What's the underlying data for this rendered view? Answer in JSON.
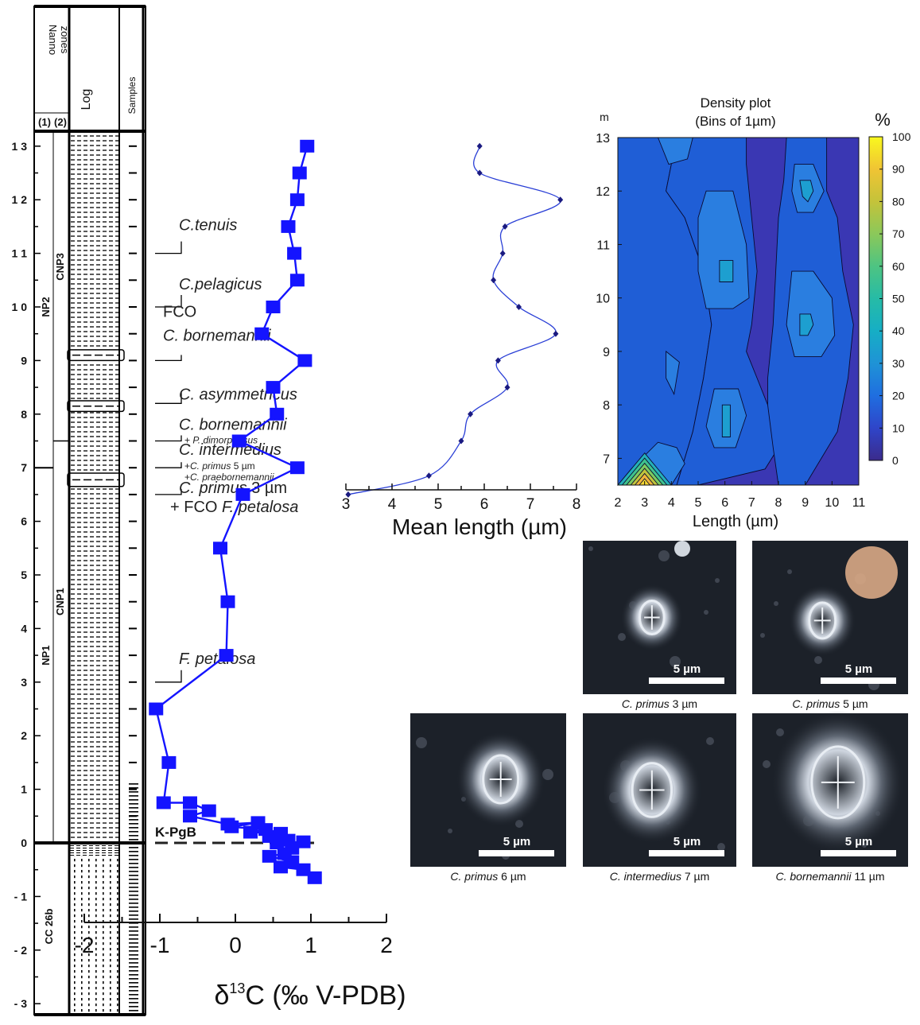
{
  "column": {
    "header_nanno": [
      "Nanno",
      "zones"
    ],
    "header_log": "Log",
    "header_samples": "Samples",
    "zone_scheme_labels": [
      "(1)",
      "(2)"
    ],
    "zones_scheme1": [
      {
        "label": "NP2",
        "from_m": 7.0,
        "to_m": 13.0
      },
      {
        "label": "NP1",
        "from_m": 0.0,
        "to_m": 7.0
      },
      {
        "label": "CC 26b",
        "from_m": -3.2,
        "to_m": 0.0
      }
    ],
    "zones_scheme2": [
      {
        "label": "CNP3",
        "from_m": 7.5,
        "to_m": 13.0
      },
      {
        "label": "CNP1",
        "from_m": 0.0,
        "to_m": 7.5
      }
    ],
    "depth_ticks": [
      {
        "m": 13,
        "label": "1 3"
      },
      {
        "m": 12,
        "label": "1 2"
      },
      {
        "m": 11,
        "label": "1 1"
      },
      {
        "m": 10,
        "label": "1 0"
      },
      {
        "m": 9,
        "label": "9"
      },
      {
        "m": 8,
        "label": "8"
      },
      {
        "m": 7,
        "label": "7"
      },
      {
        "m": 6,
        "label": "6"
      },
      {
        "m": 5,
        "label": "5"
      },
      {
        "m": 4,
        "label": "4"
      },
      {
        "m": 3,
        "label": "3"
      },
      {
        "m": 2,
        "label": "2"
      },
      {
        "m": 1,
        "label": "1"
      },
      {
        "m": 0,
        "label": "0"
      },
      {
        "m": -1,
        "label": "- 1"
      },
      {
        "m": -2,
        "label": "- 2"
      },
      {
        "m": -3,
        "label": "- 3"
      }
    ]
  },
  "biohorizons": [
    {
      "m": 11.0,
      "lines": [
        {
          "segs": [
            {
              "t": "C.tenuis",
              "i": true
            }
          ]
        }
      ]
    },
    {
      "m": 10.0,
      "lines": [
        {
          "segs": [
            {
              "t": "C.pelagicus",
              "i": true
            }
          ]
        }
      ]
    },
    {
      "m": 9.0,
      "lines": [
        {
          "segs": [
            {
              "t": "FCO",
              "i": false
            }
          ]
        },
        {
          "segs": [
            {
              "t": "C. bornemannii",
              "i": true
            }
          ]
        }
      ]
    },
    {
      "m": 8.2,
      "lines": [
        {
          "segs": [
            {
              "t": "C. asymmetricus",
              "i": true
            }
          ]
        }
      ]
    },
    {
      "m": 7.5,
      "lines": [
        {
          "segs": [
            {
              "t": "C. bornemannii",
              "i": true
            }
          ]
        },
        {
          "segs": [
            {
              "t": "+ ",
              "i": false
            },
            {
              "t": "P. dimorphosus",
              "i": true
            }
          ],
          "small": true
        }
      ]
    },
    {
      "m": 7.0,
      "lines": [
        {
          "segs": [
            {
              "t": "C. intermedius",
              "i": true
            }
          ]
        },
        {
          "segs": [
            {
              "t": "+",
              "i": false
            },
            {
              "t": "C. primus",
              "i": true
            },
            {
              "t": " 5 µm",
              "i": false
            }
          ],
          "small": true
        },
        {
          "segs": [
            {
              "t": "+",
              "i": false
            },
            {
              "t": "C. praebornemannii",
              "i": true
            }
          ],
          "small": true
        }
      ]
    },
    {
      "m": 6.5,
      "lines": [
        {
          "segs": [
            {
              "t": "C. primus",
              "i": true
            },
            {
              "t": " 3 µm",
              "i": false
            }
          ]
        },
        {
          "segs": [
            {
              "t": "+ FCO ",
              "i": false
            },
            {
              "t": "F. petalosa",
              "i": true
            }
          ]
        }
      ]
    },
    {
      "m": 3.0,
      "lines": [
        {
          "segs": [
            {
              "t": "F. petalosa",
              "i": true
            }
          ]
        }
      ]
    }
  ],
  "kpg_boundary": {
    "label": "K-PgB",
    "m": 0.0
  },
  "chart_data": [
    {
      "type": "line",
      "name": "delta13C",
      "xlabel": "δ13C (‰ V-PDB)",
      "xlim": [
        -2,
        2
      ],
      "xticks": [
        -2,
        -1,
        0,
        1,
        2
      ],
      "ylim": [
        -3.2,
        13.2
      ],
      "series": [
        {
          "points": [
            {
              "x": 0.95,
              "y": 13.0
            },
            {
              "x": 0.85,
              "y": 12.5
            },
            {
              "x": 0.82,
              "y": 12.0
            },
            {
              "x": 0.7,
              "y": 11.5
            },
            {
              "x": 0.78,
              "y": 11.0
            },
            {
              "x": 0.82,
              "y": 10.5
            },
            {
              "x": 0.5,
              "y": 10.0
            },
            {
              "x": 0.35,
              "y": 9.5
            },
            {
              "x": 0.92,
              "y": 9.0
            },
            {
              "x": 0.5,
              "y": 8.5
            },
            {
              "x": 0.55,
              "y": 8.0
            },
            {
              "x": 0.05,
              "y": 7.5
            },
            {
              "x": 0.82,
              "y": 7.0
            },
            {
              "x": 0.1,
              "y": 6.5
            },
            {
              "x": -0.2,
              "y": 5.5
            },
            {
              "x": -0.1,
              "y": 4.5
            },
            {
              "x": -0.12,
              "y": 3.5
            },
            {
              "x": -1.05,
              "y": 2.5
            },
            {
              "x": -0.88,
              "y": 1.5
            },
            {
              "x": -0.95,
              "y": 0.75
            },
            {
              "x": -0.6,
              "y": 0.75
            },
            {
              "x": -0.35,
              "y": 0.6
            },
            {
              "x": -0.6,
              "y": 0.5
            },
            {
              "x": -0.1,
              "y": 0.35
            },
            {
              "x": 0.3,
              "y": 0.38
            },
            {
              "x": -0.05,
              "y": 0.3
            },
            {
              "x": 0.4,
              "y": 0.25
            },
            {
              "x": 0.2,
              "y": 0.2
            },
            {
              "x": 0.6,
              "y": 0.18
            },
            {
              "x": 0.45,
              "y": 0.12
            },
            {
              "x": 0.7,
              "y": 0.05
            },
            {
              "x": 0.55,
              "y": 0.0
            },
            {
              "x": 0.9,
              "y": 0.02
            },
            {
              "x": 0.75,
              "y": -0.1
            },
            {
              "x": 0.65,
              "y": -0.2
            },
            {
              "x": 0.45,
              "y": -0.25
            },
            {
              "x": 0.75,
              "y": -0.35
            },
            {
              "x": 0.6,
              "y": -0.45
            },
            {
              "x": 0.9,
              "y": -0.5
            },
            {
              "x": 1.05,
              "y": -0.65
            }
          ]
        }
      ]
    },
    {
      "type": "line",
      "name": "mean-length",
      "xlabel": "Mean length (µm)",
      "xlim": [
        3,
        8
      ],
      "xticks": [
        3,
        4,
        5,
        6,
        7,
        8
      ],
      "ylim": [
        -3.2,
        13.2
      ],
      "series": [
        {
          "points": [
            {
              "x": 5.9,
              "y": 13.0
            },
            {
              "x": 5.9,
              "y": 12.5
            },
            {
              "x": 7.65,
              "y": 12.0
            },
            {
              "x": 6.45,
              "y": 11.5
            },
            {
              "x": 6.4,
              "y": 11.0
            },
            {
              "x": 6.2,
              "y": 10.5
            },
            {
              "x": 6.75,
              "y": 10.0
            },
            {
              "x": 7.55,
              "y": 9.5
            },
            {
              "x": 6.3,
              "y": 9.0
            },
            {
              "x": 6.5,
              "y": 8.5
            },
            {
              "x": 5.7,
              "y": 8.0
            },
            {
              "x": 5.5,
              "y": 7.5
            },
            {
              "x": 4.8,
              "y": 6.85
            },
            {
              "x": 3.05,
              "y": 6.5
            }
          ]
        }
      ]
    },
    {
      "type": "heatmap",
      "name": "density-plot",
      "title": "Density plot",
      "subtitle": "(Bins of 1µm)",
      "xlabel": "Length (µm)",
      "ylabel": "m",
      "xlim": [
        2,
        11
      ],
      "xticks": [
        2,
        3,
        4,
        5,
        6,
        7,
        8,
        9,
        10,
        11
      ],
      "ylim": [
        6.5,
        13
      ],
      "yticks": [
        7,
        8,
        9,
        10,
        11,
        12,
        13
      ],
      "colorbar": {
        "label": "%",
        "min": 0,
        "max": 100,
        "ticks": [
          0,
          10,
          20,
          30,
          40,
          50,
          60,
          70,
          80,
          90,
          100
        ]
      }
    }
  ],
  "photos": [
    {
      "scale": "5 µm",
      "caption": [
        {
          "t": "C. primus",
          "i": true
        },
        {
          "t": " 3 µm",
          "i": false
        }
      ]
    },
    {
      "scale": "5 µm",
      "caption": [
        {
          "t": "C. primus",
          "i": true
        },
        {
          "t": " 5 µm",
          "i": false
        }
      ]
    },
    {
      "scale": "5 µm",
      "caption": [
        {
          "t": "C. primus",
          "i": true
        },
        {
          "t": " 6 µm",
          "i": false
        }
      ]
    },
    {
      "scale": "5 µm",
      "caption": [
        {
          "t": "C. intermedius",
          "i": true
        },
        {
          "t": " 7 µm",
          "i": false
        }
      ]
    },
    {
      "scale": "5 µm",
      "caption": [
        {
          "t": "C. bornemannii",
          "i": true
        },
        {
          "t": " 11 µm",
          "i": false
        }
      ]
    }
  ],
  "colors": {
    "series": "#1414ff",
    "mean_length": "#1a1a80"
  }
}
